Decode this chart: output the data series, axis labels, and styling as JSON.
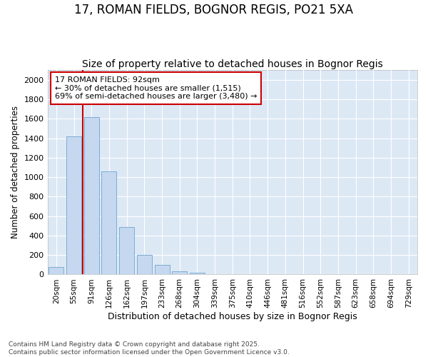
{
  "title1": "17, ROMAN FIELDS, BOGNOR REGIS, PO21 5XA",
  "title2": "Size of property relative to detached houses in Bognor Regis",
  "xlabel": "Distribution of detached houses by size in Bognor Regis",
  "ylabel": "Number of detached properties",
  "categories": [
    "20sqm",
    "55sqm",
    "91sqm",
    "126sqm",
    "162sqm",
    "197sqm",
    "233sqm",
    "268sqm",
    "304sqm",
    "339sqm",
    "375sqm",
    "410sqm",
    "446sqm",
    "481sqm",
    "516sqm",
    "552sqm",
    "587sqm",
    "623sqm",
    "658sqm",
    "694sqm",
    "729sqm"
  ],
  "values": [
    75,
    1420,
    1620,
    1060,
    490,
    200,
    100,
    35,
    20,
    0,
    0,
    0,
    0,
    0,
    0,
    0,
    0,
    0,
    0,
    0,
    0
  ],
  "bar_color": "#c5d8f0",
  "bar_edge_color": "#7aadd4",
  "vline_x": 1.5,
  "vline_color": "#cc0000",
  "annotation_text": "17 ROMAN FIELDS: 92sqm\n← 30% of detached houses are smaller (1,515)\n69% of semi-detached houses are larger (3,480) →",
  "annotation_box_facecolor": "#ffffff",
  "annotation_box_edgecolor": "#cc0000",
  "ylim": [
    0,
    2100
  ],
  "yticks": [
    0,
    200,
    400,
    600,
    800,
    1000,
    1200,
    1400,
    1600,
    1800,
    2000
  ],
  "footnote": "Contains HM Land Registry data © Crown copyright and database right 2025.\nContains public sector information licensed under the Open Government Licence v3.0.",
  "outer_bg": "#ffffff",
  "plot_bg": "#dde8f5",
  "grid_color": "#ffffff",
  "title1_fontsize": 12,
  "title2_fontsize": 10,
  "annotation_fontsize": 8
}
